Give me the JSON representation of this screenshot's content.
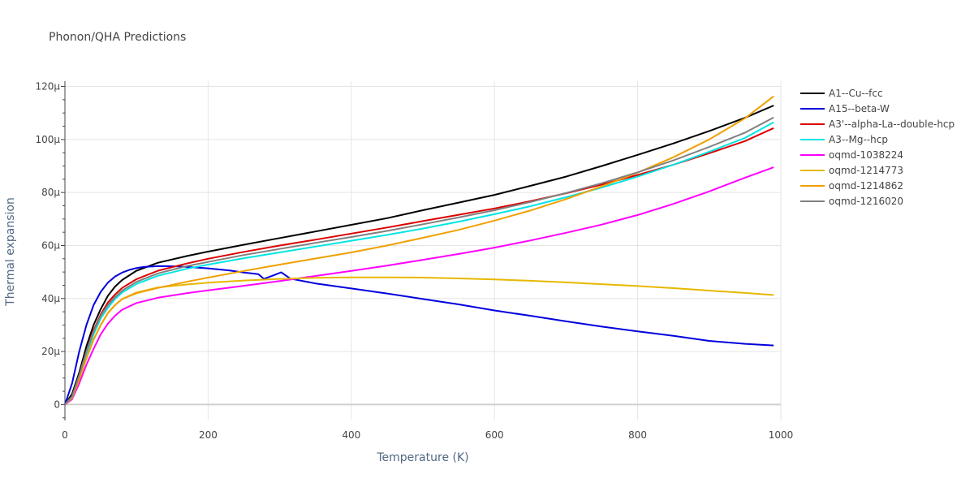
{
  "chart_data": {
    "type": "line",
    "title": "Phonon/QHA Predictions",
    "xlabel": "Temperature (K)",
    "ylabel": "Thermal expansion",
    "xlim": [
      0,
      1000
    ],
    "ylim": [
      -6,
      122
    ],
    "x_ticks": [
      0,
      200,
      400,
      600,
      800,
      1000
    ],
    "x_tick_labels": [
      "0",
      "200",
      "400",
      "600",
      "800",
      "1000"
    ],
    "y_ticks": [
      0,
      20,
      40,
      60,
      80,
      100,
      120
    ],
    "y_tick_labels": [
      "0",
      "20µ",
      "40µ",
      "60µ",
      "80µ",
      "100µ",
      "120µ"
    ],
    "grid": true,
    "legend_position": "right",
    "series": [
      {
        "name": "A1--Cu--fcc",
        "color": "#000000",
        "x": [
          0,
          10,
          20,
          30,
          40,
          50,
          60,
          70,
          80,
          100,
          130,
          170,
          200,
          250,
          300,
          350,
          400,
          450,
          500,
          550,
          600,
          650,
          700,
          750,
          800,
          850,
          900,
          950,
          990
        ],
        "y": [
          0,
          4,
          12,
          22,
          30,
          36,
          41,
          44.5,
          47,
          50.5,
          53.5,
          56,
          57.7,
          60.3,
          62.8,
          65.3,
          67.8,
          70.3,
          73.3,
          76.2,
          79.1,
          82.5,
          86,
          90,
          94.2,
          98.5,
          103.2,
          108.2,
          112.8
        ]
      },
      {
        "name": "A15--beta-W",
        "color": "#0000dd",
        "x": [
          0,
          10,
          20,
          30,
          40,
          50,
          60,
          70,
          80,
          90,
          100,
          110,
          130,
          160,
          200,
          230,
          250,
          270,
          278,
          290,
          302,
          315,
          350,
          400,
          450,
          500,
          550,
          600,
          650,
          700,
          750,
          800,
          850,
          900,
          950,
          990
        ],
        "y": [
          0,
          8,
          20,
          30,
          37.5,
          42.5,
          46,
          48.3,
          49.8,
          50.8,
          51.5,
          51.9,
          52.2,
          52.1,
          51.4,
          50.6,
          49.8,
          49.2,
          47.4,
          48.6,
          49.9,
          47.5,
          45.7,
          43.8,
          41.9,
          39.8,
          37.8,
          35.5,
          33.5,
          31.4,
          29.4,
          27.6,
          25.9,
          24.0,
          22.9,
          22.3
        ]
      },
      {
        "name": "A3'--alpha-La--double-hcp",
        "color": "#dd0000",
        "x": [
          0,
          10,
          20,
          30,
          40,
          50,
          60,
          70,
          80,
          100,
          130,
          170,
          200,
          250,
          300,
          350,
          400,
          450,
          500,
          550,
          600,
          650,
          700,
          750,
          800,
          850,
          900,
          950,
          990
        ],
        "y": [
          0,
          3,
          11,
          20,
          28,
          34,
          38.5,
          41.5,
          44,
          47.3,
          50.5,
          53.2,
          55,
          57.6,
          60,
          62.2,
          64.5,
          66.8,
          69.2,
          71.6,
          74,
          76.7,
          79.7,
          83,
          86.6,
          90.5,
          94.8,
          99.4,
          104.3
        ]
      },
      {
        "name": "A3--Mg--hcp",
        "color": "#00e5e5",
        "x": [
          0,
          10,
          20,
          30,
          40,
          50,
          60,
          70,
          80,
          100,
          130,
          170,
          200,
          250,
          300,
          350,
          400,
          450,
          500,
          550,
          600,
          650,
          700,
          750,
          800,
          850,
          900,
          950,
          990
        ],
        "y": [
          0,
          3,
          10.5,
          19,
          26.5,
          32.5,
          36.5,
          39.8,
          42.3,
          45.5,
          48.6,
          51.2,
          52.8,
          55.2,
          57.4,
          59.6,
          61.8,
          64,
          66.4,
          69,
          71.8,
          74.8,
          78.2,
          81.9,
          86,
          90.5,
          95.4,
          100.6,
          106.5
        ]
      },
      {
        "name": "oqmd-1038224",
        "color": "#ff00ff",
        "x": [
          0,
          10,
          20,
          30,
          40,
          50,
          60,
          70,
          80,
          100,
          130,
          170,
          200,
          250,
          300,
          350,
          400,
          450,
          500,
          550,
          600,
          650,
          700,
          750,
          800,
          850,
          900,
          950,
          990
        ],
        "y": [
          0,
          2,
          8,
          15,
          21,
          26.5,
          30.5,
          33.5,
          35.8,
          38.3,
          40.3,
          42,
          43.1,
          44.8,
          46.6,
          48.5,
          50.4,
          52.4,
          54.6,
          56.8,
          59.2,
          61.9,
          64.8,
          67.9,
          71.5,
          75.7,
          80.4,
          85.6,
          89.5
        ]
      },
      {
        "name": "oqmd-1214773",
        "color": "#e6b800",
        "x": [
          0,
          10,
          20,
          30,
          40,
          50,
          60,
          70,
          80,
          100,
          130,
          170,
          200,
          250,
          300,
          350,
          400,
          450,
          500,
          550,
          600,
          650,
          700,
          750,
          800,
          850,
          900,
          950,
          990
        ],
        "y": [
          0,
          2.5,
          9.5,
          17.5,
          24.5,
          30,
          34.5,
          37.5,
          39.8,
          42.3,
          44.2,
          45.3,
          46,
          46.8,
          47.4,
          47.8,
          48,
          48,
          47.9,
          47.6,
          47.2,
          46.7,
          46.1,
          45.4,
          44.7,
          43.9,
          43,
          42.1,
          41.3
        ]
      },
      {
        "name": "oqmd-1214862",
        "color": "#f0a000",
        "x": [
          0,
          10,
          20,
          30,
          40,
          50,
          60,
          70,
          80,
          100,
          130,
          170,
          200,
          250,
          300,
          350,
          400,
          450,
          500,
          550,
          600,
          650,
          700,
          750,
          800,
          850,
          900,
          950,
          990
        ],
        "y": [
          0,
          2.5,
          9.5,
          17.5,
          24.5,
          30,
          34.5,
          37.5,
          39.8,
          42,
          44,
          46.3,
          47.9,
          50.4,
          52.8,
          55.1,
          57.4,
          60,
          62.9,
          65.9,
          69.4,
          73.2,
          77.5,
          82.3,
          87.5,
          93.3,
          100,
          108,
          116.3
        ]
      },
      {
        "name": "oqmd-1216020",
        "color": "#808080",
        "x": [
          0,
          10,
          20,
          30,
          40,
          50,
          60,
          70,
          80,
          100,
          130,
          170,
          200,
          250,
          300,
          350,
          400,
          450,
          500,
          550,
          600,
          650,
          700,
          750,
          800,
          850,
          900,
          950,
          990
        ],
        "y": [
          0,
          3,
          11,
          20,
          27.5,
          33.5,
          37.5,
          40.5,
          43,
          46.3,
          49.5,
          52.2,
          53.8,
          56.4,
          58.7,
          61,
          63.2,
          65.5,
          68,
          70.6,
          73.3,
          76.4,
          79.8,
          83.5,
          87.6,
          92.1,
          97.2,
          102.6,
          108.3
        ]
      }
    ]
  }
}
